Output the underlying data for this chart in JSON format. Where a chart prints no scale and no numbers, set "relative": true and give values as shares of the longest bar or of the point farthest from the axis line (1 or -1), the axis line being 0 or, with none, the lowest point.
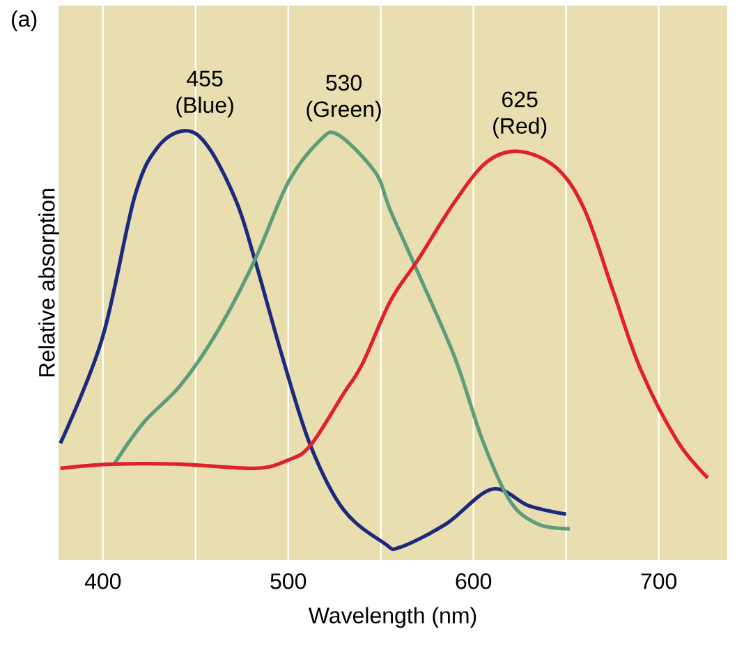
{
  "chart_data": {
    "type": "line",
    "title": "(a)",
    "xlabel": "Wavelength (nm)",
    "ylabel": "Relative absorption",
    "relative": true,
    "xlim": [
      376,
      737
    ],
    "xticks": [
      400,
      {
        "value": 450,
        "label": null
      },
      500,
      {
        "value": 550,
        "label": null
      },
      600,
      {
        "value": 650,
        "label": null
      },
      700
    ],
    "grid": "x",
    "marker": "none",
    "line_style": "solid",
    "series": [
      {
        "color": "#1b2a7c",
        "x": [
          377,
          399.5,
          417,
          429.5,
          444.6,
          457,
          472,
          482,
          497,
          512,
          530,
          552,
          560,
          585,
          610,
          630,
          650
        ],
        "values": [
          0.25,
          0.5,
          0.84,
          0.96,
          1.0,
          0.96,
          0.83,
          0.69,
          0.455,
          0.245,
          0.09,
          0.01,
          0.0,
          0.056,
          0.14,
          0.1,
          0.08
        ]
      },
      {
        "color": "#5c9e7a",
        "x": [
          406,
          422,
          442,
          462,
          482,
          500,
          517,
          527,
          547,
          555,
          570,
          590,
          605,
          620,
          635,
          652
        ],
        "values": [
          0.2,
          0.3,
          0.39,
          0.52,
          0.69,
          0.876,
          0.976,
          0.99,
          0.9,
          0.81,
          0.66,
          0.455,
          0.256,
          0.11,
          0.056,
          0.045
        ]
      },
      {
        "color": "#e0202a",
        "x": [
          377,
          404.5,
          442,
          482,
          500,
          512,
          530,
          540,
          555,
          570,
          590,
          607.5,
          625,
          645,
          660,
          675,
          690,
          710,
          726.5
        ],
        "values": [
          0.19,
          0.2,
          0.2,
          0.19,
          0.21,
          0.245,
          0.37,
          0.44,
          0.59,
          0.69,
          0.83,
          0.926,
          0.95,
          0.91,
          0.81,
          0.62,
          0.43,
          0.256,
          0.167
        ]
      }
    ],
    "annotations": [
      {
        "text": "455 (Blue)",
        "x": 455,
        "y": 1.0
      },
      {
        "text": "530 (Green)",
        "x": 530,
        "y": 0.99
      },
      {
        "text": "625 (Red)",
        "x": 625,
        "y": 0.95
      }
    ]
  }
}
